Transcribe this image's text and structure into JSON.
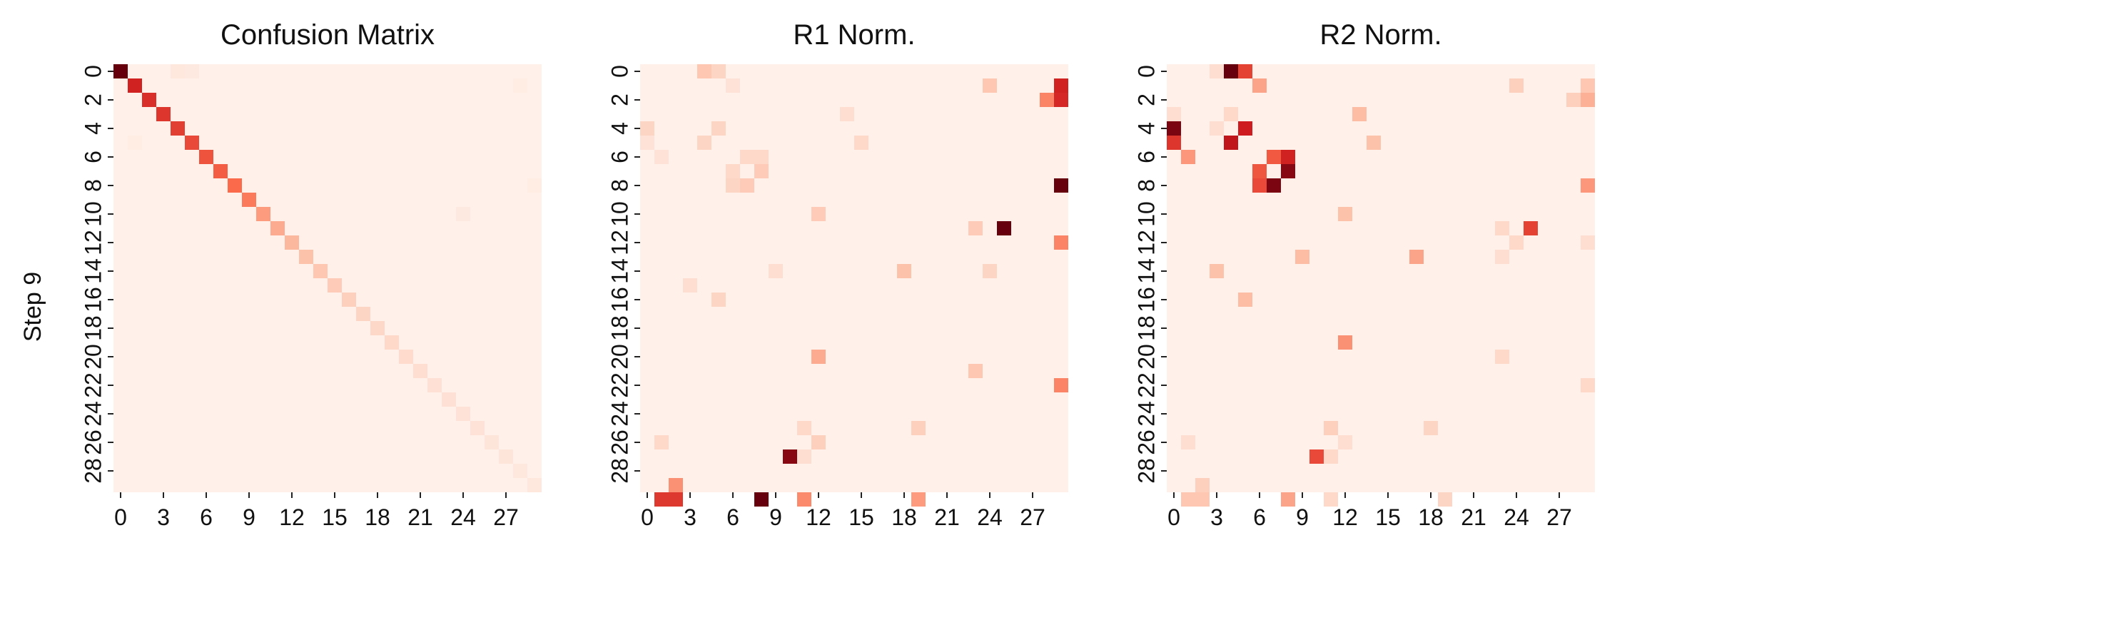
{
  "figure": {
    "row_label": "Step 9",
    "colormap": "Reds",
    "colormap_stops": [
      "#fff5f0",
      "#fcbba1",
      "#fb6a4a",
      "#cb181d",
      "#67000d"
    ]
  },
  "chart_data": [
    {
      "type": "heatmap",
      "title": "Confusion Matrix",
      "size": 30,
      "x_tick_labels": [
        "0",
        "3",
        "6",
        "9",
        "12",
        "15",
        "18",
        "21",
        "24",
        "27"
      ],
      "x_tick_indices": [
        0,
        3,
        6,
        9,
        12,
        15,
        18,
        21,
        24,
        27
      ],
      "y_tick_labels": [
        "0",
        "2",
        "4",
        "6",
        "8",
        "10",
        "12",
        "14",
        "16",
        "18",
        "20",
        "22",
        "24",
        "26",
        "28"
      ],
      "y_tick_indices": [
        0,
        2,
        4,
        6,
        8,
        10,
        12,
        14,
        16,
        18,
        20,
        22,
        24,
        26,
        28
      ],
      "value_range": [
        0,
        1
      ],
      "background_value": 0.02,
      "cells": [
        [
          0,
          0,
          1.0
        ],
        [
          1,
          1,
          0.72
        ],
        [
          2,
          2,
          0.68
        ],
        [
          3,
          3,
          0.66
        ],
        [
          4,
          4,
          0.63
        ],
        [
          5,
          5,
          0.6
        ],
        [
          6,
          6,
          0.57
        ],
        [
          7,
          7,
          0.54
        ],
        [
          8,
          8,
          0.5
        ],
        [
          9,
          9,
          0.45
        ],
        [
          10,
          10,
          0.35
        ],
        [
          11,
          11,
          0.3
        ],
        [
          12,
          12,
          0.26
        ],
        [
          13,
          13,
          0.22
        ],
        [
          14,
          14,
          0.2
        ],
        [
          15,
          15,
          0.18
        ],
        [
          16,
          16,
          0.16
        ],
        [
          17,
          17,
          0.14
        ],
        [
          18,
          18,
          0.13
        ],
        [
          19,
          19,
          0.12
        ],
        [
          20,
          20,
          0.11
        ],
        [
          21,
          21,
          0.1
        ],
        [
          22,
          22,
          0.09
        ],
        [
          23,
          23,
          0.09
        ],
        [
          24,
          24,
          0.08
        ],
        [
          25,
          25,
          0.08
        ],
        [
          26,
          26,
          0.07
        ],
        [
          27,
          27,
          0.07
        ],
        [
          28,
          28,
          0.06
        ],
        [
          29,
          29,
          0.06
        ],
        [
          0,
          4,
          0.06
        ],
        [
          0,
          5,
          0.05
        ],
        [
          10,
          24,
          0.05
        ],
        [
          1,
          28,
          0.04
        ],
        [
          5,
          1,
          0.04
        ],
        [
          8,
          29,
          0.04
        ]
      ]
    },
    {
      "type": "heatmap",
      "title": "R1 Norm.",
      "size": 30,
      "x_tick_labels": [
        "0",
        "3",
        "6",
        "9",
        "12",
        "15",
        "18",
        "21",
        "24",
        "27"
      ],
      "x_tick_indices": [
        0,
        3,
        6,
        9,
        12,
        15,
        18,
        21,
        24,
        27
      ],
      "y_tick_labels": [
        "0",
        "2",
        "4",
        "6",
        "8",
        "10",
        "12",
        "14",
        "16",
        "18",
        "20",
        "22",
        "24",
        "26",
        "28"
      ],
      "y_tick_indices": [
        0,
        2,
        4,
        6,
        8,
        10,
        12,
        14,
        16,
        18,
        20,
        22,
        24,
        26,
        28
      ],
      "value_range": [
        0,
        1
      ],
      "background_value": 0.02,
      "cells": [
        [
          0,
          4,
          0.2
        ],
        [
          0,
          5,
          0.14
        ],
        [
          1,
          6,
          0.08
        ],
        [
          1,
          24,
          0.2
        ],
        [
          1,
          29,
          0.72
        ],
        [
          2,
          28,
          0.42
        ],
        [
          2,
          29,
          0.7
        ],
        [
          3,
          14,
          0.1
        ],
        [
          4,
          0,
          0.14
        ],
        [
          4,
          5,
          0.14
        ],
        [
          5,
          0,
          0.08
        ],
        [
          5,
          4,
          0.14
        ],
        [
          5,
          15,
          0.12
        ],
        [
          6,
          1,
          0.08
        ],
        [
          6,
          7,
          0.12
        ],
        [
          6,
          8,
          0.12
        ],
        [
          7,
          8,
          0.18
        ],
        [
          7,
          6,
          0.12
        ],
        [
          8,
          6,
          0.14
        ],
        [
          8,
          7,
          0.18
        ],
        [
          8,
          29,
          1.0
        ],
        [
          10,
          12,
          0.18
        ],
        [
          11,
          23,
          0.18
        ],
        [
          11,
          25,
          1.0
        ],
        [
          12,
          29,
          0.42
        ],
        [
          14,
          9,
          0.1
        ],
        [
          14,
          18,
          0.22
        ],
        [
          14,
          24,
          0.14
        ],
        [
          15,
          3,
          0.1
        ],
        [
          16,
          5,
          0.14
        ],
        [
          20,
          12,
          0.3
        ],
        [
          21,
          23,
          0.2
        ],
        [
          22,
          29,
          0.42
        ],
        [
          25,
          11,
          0.12
        ],
        [
          25,
          19,
          0.16
        ],
        [
          26,
          1,
          0.12
        ],
        [
          26,
          12,
          0.16
        ],
        [
          27,
          10,
          0.92
        ],
        [
          27,
          11,
          0.1
        ],
        [
          29,
          2,
          0.38
        ],
        [
          30,
          1,
          0.65
        ],
        [
          30,
          2,
          0.65
        ],
        [
          30,
          8,
          1.0
        ],
        [
          30,
          11,
          0.4
        ],
        [
          30,
          19,
          0.35
        ]
      ]
    },
    {
      "type": "heatmap",
      "title": "R2 Norm.",
      "size": 30,
      "x_tick_labels": [
        "0",
        "3",
        "6",
        "9",
        "12",
        "15",
        "18",
        "21",
        "24",
        "27"
      ],
      "x_tick_indices": [
        0,
        3,
        6,
        9,
        12,
        15,
        18,
        21,
        24,
        27
      ],
      "y_tick_labels": [
        "0",
        "2",
        "4",
        "6",
        "8",
        "10",
        "12",
        "14",
        "16",
        "18",
        "20",
        "22",
        "24",
        "26",
        "28"
      ],
      "y_tick_indices": [
        0,
        2,
        4,
        6,
        8,
        10,
        12,
        14,
        16,
        18,
        20,
        22,
        24,
        26,
        28
      ],
      "value_range": [
        0,
        1
      ],
      "background_value": 0.02,
      "cells": [
        [
          0,
          3,
          0.1
        ],
        [
          0,
          4,
          1.0
        ],
        [
          0,
          5,
          0.62
        ],
        [
          1,
          6,
          0.32
        ],
        [
          1,
          24,
          0.16
        ],
        [
          1,
          29,
          0.2
        ],
        [
          2,
          28,
          0.16
        ],
        [
          2,
          29,
          0.28
        ],
        [
          3,
          0,
          0.1
        ],
        [
          3,
          4,
          0.12
        ],
        [
          3,
          13,
          0.24
        ],
        [
          4,
          0,
          0.95
        ],
        [
          4,
          3,
          0.1
        ],
        [
          4,
          5,
          0.74
        ],
        [
          5,
          0,
          0.66
        ],
        [
          5,
          4,
          0.78
        ],
        [
          5,
          14,
          0.22
        ],
        [
          6,
          1,
          0.36
        ],
        [
          6,
          7,
          0.55
        ],
        [
          6,
          8,
          0.72
        ],
        [
          7,
          6,
          0.56
        ],
        [
          7,
          8,
          0.92
        ],
        [
          8,
          6,
          0.6
        ],
        [
          8,
          7,
          0.95
        ],
        [
          8,
          29,
          0.36
        ],
        [
          10,
          12,
          0.22
        ],
        [
          11,
          23,
          0.12
        ],
        [
          11,
          25,
          0.62
        ],
        [
          12,
          24,
          0.12
        ],
        [
          12,
          29,
          0.1
        ],
        [
          13,
          9,
          0.24
        ],
        [
          13,
          17,
          0.32
        ],
        [
          13,
          23,
          0.1
        ],
        [
          14,
          3,
          0.22
        ],
        [
          16,
          5,
          0.24
        ],
        [
          19,
          12,
          0.38
        ],
        [
          20,
          23,
          0.12
        ],
        [
          22,
          29,
          0.12
        ],
        [
          25,
          11,
          0.16
        ],
        [
          25,
          18,
          0.14
        ],
        [
          26,
          1,
          0.1
        ],
        [
          26,
          12,
          0.1
        ],
        [
          27,
          10,
          0.6
        ],
        [
          27,
          11,
          0.12
        ],
        [
          29,
          2,
          0.16
        ],
        [
          30,
          1,
          0.2
        ],
        [
          30,
          2,
          0.2
        ],
        [
          30,
          8,
          0.32
        ],
        [
          30,
          11,
          0.12
        ],
        [
          30,
          19,
          0.14
        ]
      ]
    }
  ]
}
